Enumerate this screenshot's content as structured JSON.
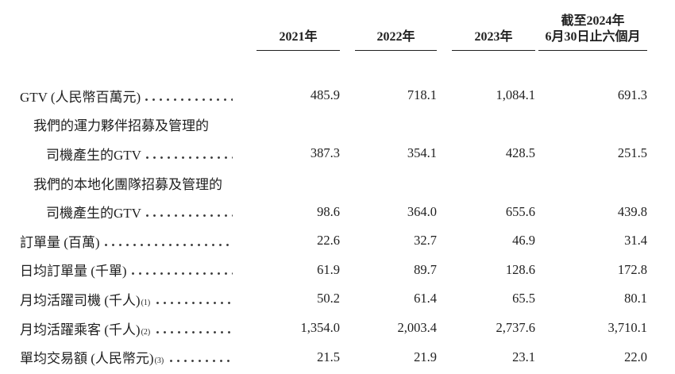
{
  "colors": {
    "background": "#ffffff",
    "text": "#1f1f1f",
    "rule": "#1f1f1f"
  },
  "table": {
    "header": {
      "period_note": "截至2024年",
      "columns": [
        "2021年",
        "2022年",
        "2023年",
        "6月30日止六個月"
      ]
    },
    "rows": [
      {
        "label": "GTV (人民幣百萬元)",
        "indent": 0,
        "sup": "",
        "dots": true,
        "values": [
          "485.9",
          "718.1",
          "1,084.1",
          "691.3"
        ]
      },
      {
        "label": "我們的運力夥伴招募及管理的",
        "indent": 1,
        "sup": "",
        "dots": false,
        "values": [
          "",
          "",
          "",
          ""
        ]
      },
      {
        "label": "司機產生的GTV",
        "indent": 2,
        "sup": "",
        "dots": true,
        "values": [
          "387.3",
          "354.1",
          "428.5",
          "251.5"
        ]
      },
      {
        "label": "我們的本地化團隊招募及管理的",
        "indent": 1,
        "sup": "",
        "dots": false,
        "values": [
          "",
          "",
          "",
          ""
        ]
      },
      {
        "label": "司機產生的GTV",
        "indent": 2,
        "sup": "",
        "dots": true,
        "values": [
          "98.6",
          "364.0",
          "655.6",
          "439.8"
        ]
      },
      {
        "label": "訂單量 (百萬)",
        "indent": 0,
        "sup": "",
        "dots": true,
        "values": [
          "22.6",
          "32.7",
          "46.9",
          "31.4"
        ]
      },
      {
        "label": "日均訂單量 (千單)",
        "indent": 0,
        "sup": "",
        "dots": true,
        "values": [
          "61.9",
          "89.7",
          "128.6",
          "172.8"
        ]
      },
      {
        "label": "月均活躍司機 (千人)",
        "indent": 0,
        "sup": "(1)",
        "dots": true,
        "values": [
          "50.2",
          "61.4",
          "65.5",
          "80.1"
        ]
      },
      {
        "label": "月均活躍乘客 (千人)",
        "indent": 0,
        "sup": "(2)",
        "dots": true,
        "values": [
          "1,354.0",
          "2,003.4",
          "2,737.6",
          "3,710.1"
        ]
      },
      {
        "label": "單均交易額 (人民幣元)",
        "indent": 0,
        "sup": "(3)",
        "dots": true,
        "values": [
          "21.5",
          "21.9",
          "23.1",
          "22.0"
        ]
      }
    ]
  }
}
